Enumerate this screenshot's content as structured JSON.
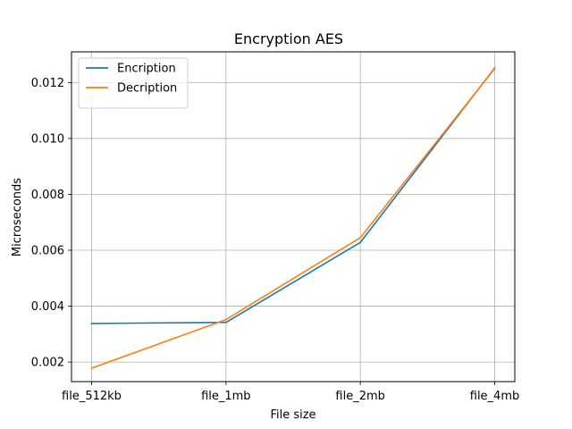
{
  "chart_data": {
    "type": "line",
    "title": "Encryption AES",
    "xlabel": "File size",
    "ylabel": "Microseconds",
    "categories": [
      "file_512kb",
      "file_1mb",
      "file_2mb",
      "file_4mb"
    ],
    "ylim": [
      0.0013,
      0.0131
    ],
    "yticks": [
      0.002,
      0.004,
      0.006,
      0.008,
      0.01,
      0.012
    ],
    "ytick_labels": [
      "0.002",
      "0.004",
      "0.006",
      "0.008",
      "0.010",
      "0.012"
    ],
    "grid": true,
    "legend_position": "top-left",
    "series": [
      {
        "name": "Encription",
        "color": "#1f77b4",
        "values": [
          0.00338,
          0.00342,
          0.00628,
          0.01252
        ]
      },
      {
        "name": "Decription",
        "color": "#ff7f0e",
        "values": [
          0.00178,
          0.00352,
          0.00645,
          0.0125
        ]
      }
    ]
  }
}
